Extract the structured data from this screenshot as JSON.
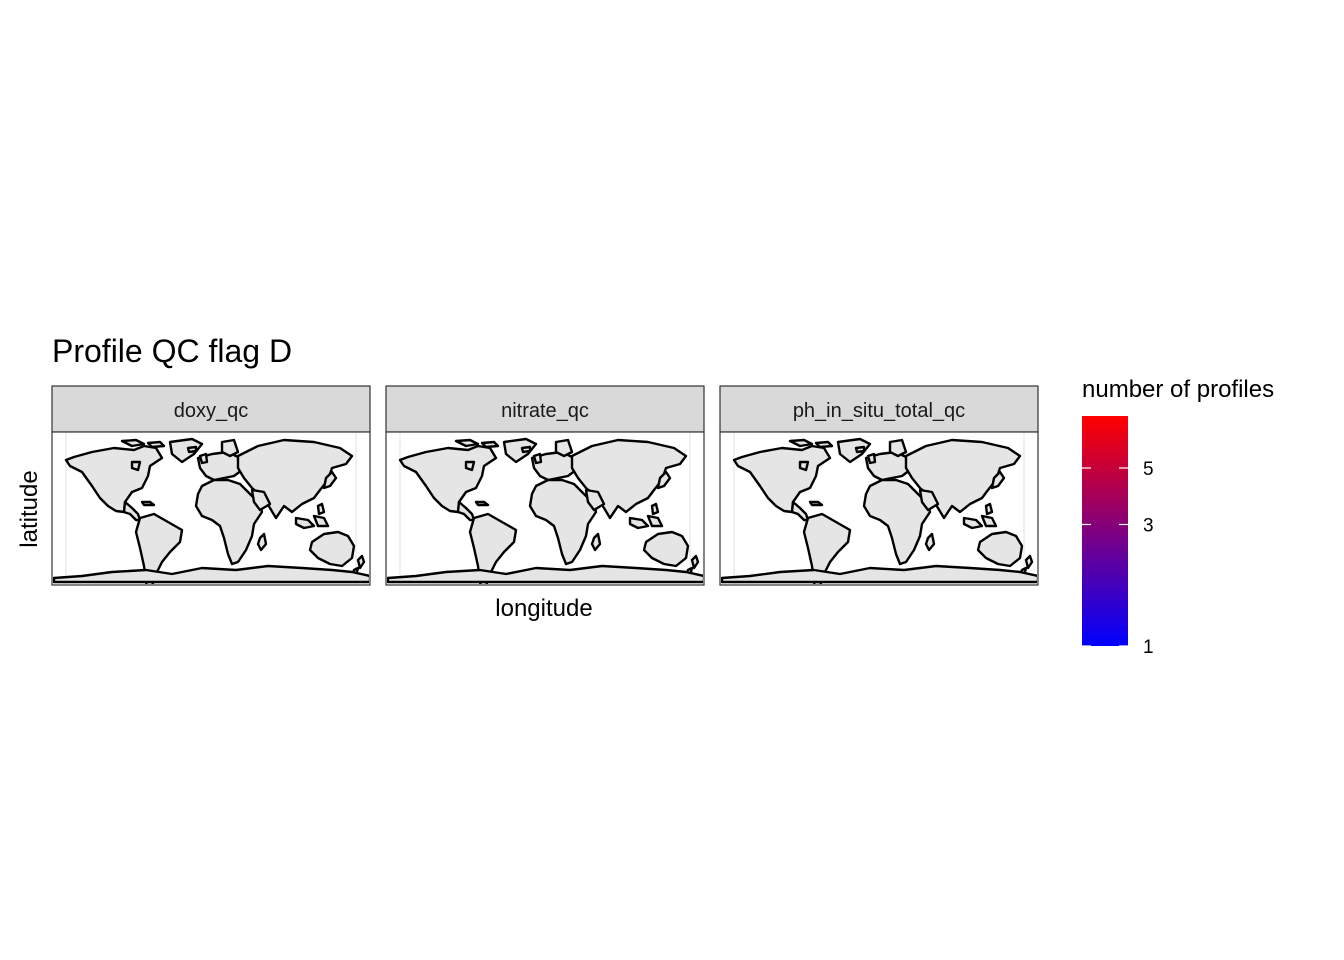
{
  "title": "Profile QC flag D",
  "xlabel": "longitude",
  "ylabel": "latitude",
  "panels": [
    {
      "label": "doxy_qc"
    },
    {
      "label": "nitrate_qc"
    },
    {
      "label": "ph_in_situ_total_qc"
    }
  ],
  "legend": {
    "title": "number of profiles",
    "ticks": [
      {
        "value": 1,
        "label": "1"
      },
      {
        "value": 3,
        "label": "3"
      },
      {
        "value": 5,
        "label": "5"
      }
    ],
    "range": [
      1,
      8
    ],
    "scale": "log10",
    "low_color": "#0000FF",
    "high_color": "#FF0000",
    "placement": "right"
  },
  "colors": {
    "land_fill": "#e5e5e5",
    "coastline": "#000000",
    "strip_fill": "#d9d9d9",
    "panel_border": "#333333"
  },
  "map_extent": {
    "lon": [
      -180,
      180
    ],
    "lat": [
      -85,
      90
    ]
  }
}
